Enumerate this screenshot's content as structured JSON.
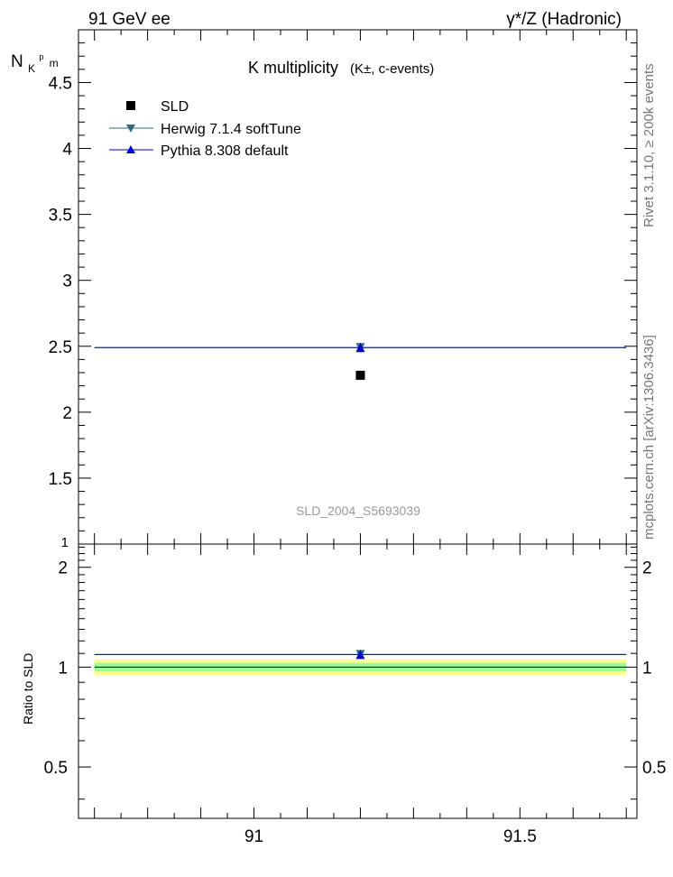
{
  "header": {
    "left": "91 GeV ee",
    "right": "γ*/Z (Hadronic)"
  },
  "side_text": {
    "rivet": "Rivet 3.1.10, ≥ 200k events",
    "mcplots": "mcplots.cern.ch [arXiv:1306.3436]"
  },
  "chart_data": [
    {
      "type": "scatter",
      "panel": "main",
      "title": "K multiplicity",
      "title_suffix": "(K±, c-events)",
      "ylabel": "N",
      "ylabel_sub": "K",
      "ylabel_sup": "p",
      "ylabel_sub2": "m",
      "watermark": "SLD_2004_S5693039",
      "xlim": [
        90.67,
        91.72
      ],
      "ylim": [
        1.0,
        4.9
      ],
      "yticks": [
        {
          "v": 1.5,
          "label": "1.5"
        },
        {
          "v": 2,
          "label": "2"
        },
        {
          "v": 2.5,
          "label": "2.5"
        },
        {
          "v": 3,
          "label": "3"
        },
        {
          "v": 3.5,
          "label": "3.5"
        },
        {
          "v": 4,
          "label": "4"
        },
        {
          "v": 4.5,
          "label": "4.5"
        }
      ],
      "y_bottom_partial_label": "1",
      "legend_position": "top-left",
      "series": [
        {
          "name": "SLD",
          "kind": "data",
          "color": "#000000",
          "marker": "square",
          "x": 91.2,
          "y": 2.28
        },
        {
          "name": "Herwig 7.1.4 softTune",
          "kind": "mc",
          "color": "#2e6b7e",
          "marker": "triangle-down",
          "x": 91.2,
          "y": 2.49,
          "xrange": [
            90.67,
            91.72
          ]
        },
        {
          "name": "Pythia 8.308 default",
          "kind": "mc",
          "color": "#0000cc",
          "marker": "triangle-up",
          "x": 91.2,
          "y": 2.49,
          "xrange": [
            90.67,
            91.72
          ]
        }
      ]
    },
    {
      "type": "scatter",
      "panel": "ratio",
      "xlabel": "",
      "ylabel": "Ratio to SLD",
      "xlim": [
        90.67,
        91.72
      ],
      "ylim": [
        0.35,
        2.35
      ],
      "log_y": true,
      "xticks": [
        {
          "v": 91,
          "label": "91"
        },
        {
          "v": 91.5,
          "label": "91.5"
        }
      ],
      "yticks": [
        {
          "v": 0.5,
          "label": "0.5"
        },
        {
          "v": 1,
          "label": "1"
        },
        {
          "v": 2,
          "label": "2"
        }
      ],
      "band": {
        "inner": [
          0.97,
          1.03
        ],
        "outer": [
          0.945,
          1.055
        ],
        "inner_color": "#99ff99",
        "outer_color": "#ffff88"
      },
      "series": [
        {
          "name": "Herwig 7.1.4 softTune",
          "color": "#2e6b7e",
          "marker": "triangle-down",
          "x": 91.2,
          "y": 1.092
        },
        {
          "name": "Pythia 8.308 default",
          "color": "#0000cc",
          "marker": "triangle-up",
          "x": 91.2,
          "y": 1.092
        }
      ]
    }
  ]
}
